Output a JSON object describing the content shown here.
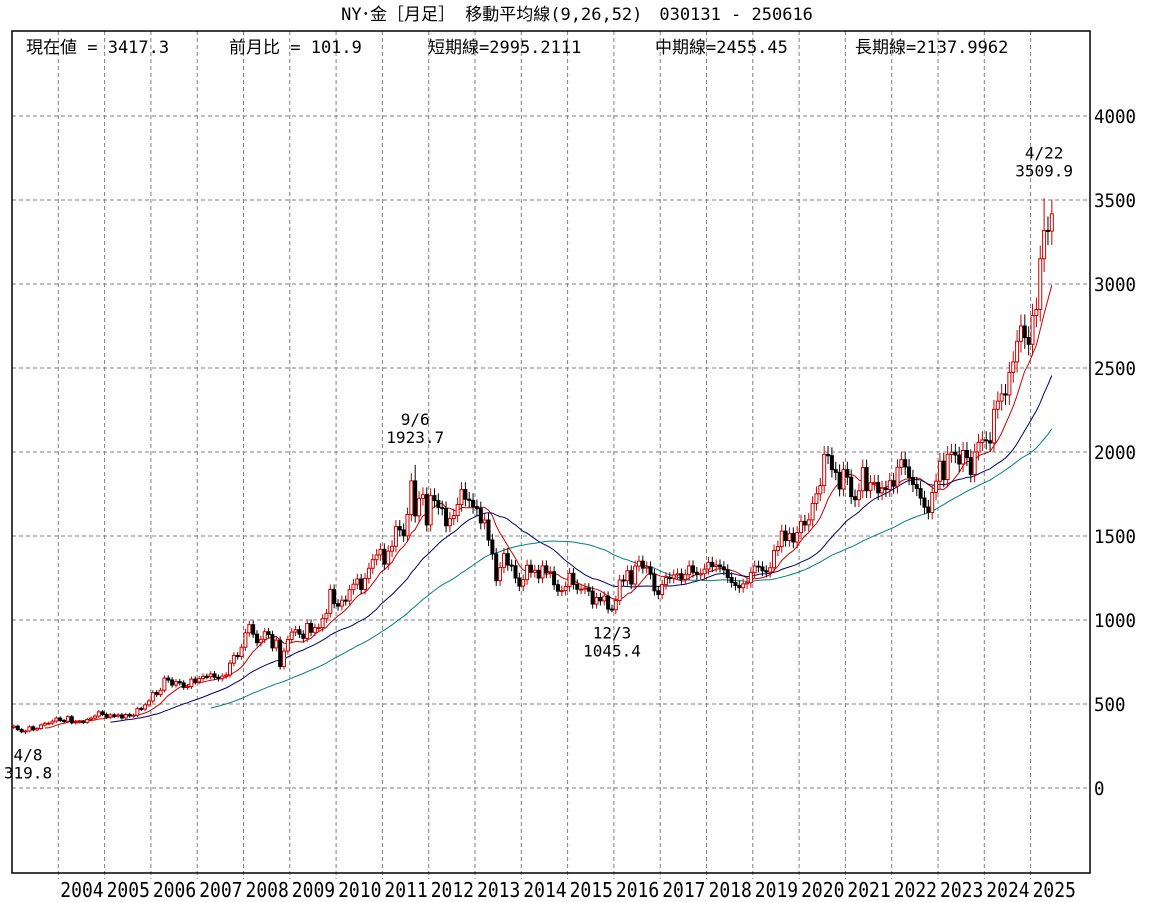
{
  "title": "NY･金［月足］ 移動平均線(9,26,52)　030131 - 250616",
  "header": {
    "current": "現在値 = 3417.3",
    "prev_ratio": "前月比 = 101.9",
    "short_ma": "短期線=2995.2111",
    "mid_ma": "中期線=2455.45",
    "long_ma": "長期線=2137.9962"
  },
  "colors": {
    "up": "#cc0000",
    "down": "#000000",
    "short_ma": "#cc0000",
    "mid_ma": "#000066",
    "long_ma": "#008080",
    "grid": "#808080"
  },
  "chart_data": {
    "type": "candlestick",
    "interval": "monthly",
    "start": "2003-01",
    "end": "2025-06",
    "ylim": [
      -500,
      4500
    ],
    "yticks": [
      0,
      500,
      1000,
      1500,
      2000,
      2500,
      3000,
      3500,
      4000
    ],
    "ytick_labels": [
      "0",
      "500",
      "1000",
      "1500",
      "2000",
      "2500",
      "3000",
      "3500",
      "4000"
    ],
    "xtick_labels": [
      "2004",
      "2005",
      "2006",
      "2007",
      "2008",
      "2009",
      "2010",
      "2011",
      "2012",
      "2013",
      "2014",
      "2015",
      "2016",
      "2017",
      "2018",
      "2019",
      "2020",
      "2021",
      "2022",
      "2023",
      "2024",
      "2025"
    ],
    "grid": true,
    "moving_averages": [
      9,
      26,
      52
    ],
    "closes": [
      368,
      348,
      335,
      339,
      364,
      346,
      354,
      375,
      385,
      386,
      398,
      416,
      402,
      397,
      424,
      388,
      394,
      395,
      391,
      408,
      416,
      428,
      453,
      438,
      422,
      435,
      428,
      435,
      417,
      437,
      429,
      433,
      473,
      470,
      495,
      518,
      568,
      556,
      582,
      654,
      643,
      613,
      633,
      626,
      599,
      604,
      648,
      632,
      651,
      665,
      663,
      679,
      659,
      650,
      666,
      673,
      743,
      789,
      783,
      838,
      924,
      972,
      916,
      865,
      885,
      930,
      913,
      834,
      880,
      723,
      815,
      884,
      928,
      942,
      916,
      891,
      979,
      927,
      955,
      955,
      1008,
      1040,
      1182,
      1097,
      1083,
      1118,
      1114,
      1180,
      1213,
      1244,
      1182,
      1248,
      1308,
      1359,
      1387,
      1421,
      1333,
      1410,
      1439,
      1556,
      1536,
      1501,
      1628,
      1828,
      1620,
      1724,
      1746,
      1566,
      1740,
      1711,
      1669,
      1664,
      1561,
      1604,
      1622,
      1687,
      1776,
      1719,
      1712,
      1675,
      1663,
      1578,
      1595,
      1476,
      1393,
      1234,
      1312,
      1395,
      1327,
      1323,
      1250,
      1202,
      1240,
      1326,
      1284,
      1296,
      1250,
      1322,
      1282,
      1287,
      1210,
      1172,
      1175,
      1199,
      1278,
      1212,
      1183,
      1184,
      1190,
      1172,
      1095,
      1134,
      1114,
      1142,
      1065,
      1061,
      1116,
      1238,
      1234,
      1293,
      1214,
      1321,
      1350,
      1309,
      1316,
      1273,
      1174,
      1152,
      1211,
      1253,
      1249,
      1268,
      1275,
      1242,
      1270,
      1322,
      1284,
      1271,
      1275,
      1303,
      1343,
      1318,
      1327,
      1316,
      1299,
      1253,
      1224,
      1206,
      1192,
      1215,
      1222,
      1282,
      1321,
      1316,
      1293,
      1285,
      1311,
      1414,
      1437,
      1529,
      1473,
      1514,
      1464,
      1520,
      1587,
      1566,
      1596,
      1694,
      1751,
      1800,
      1986,
      1978,
      1895,
      1879,
      1780,
      1895,
      1850,
      1734,
      1716,
      1769,
      1907,
      1770,
      1817,
      1818,
      1757,
      1784,
      1776,
      1829,
      1797,
      1909,
      1954,
      1911,
      1848,
      1807,
      1782,
      1726,
      1672,
      1640,
      1759,
      1826,
      1945,
      1836,
      1986,
      1999,
      1982,
      1929,
      2009,
      1966,
      1866,
      2000,
      2057,
      2072,
      2067,
      2054,
      2254,
      2303,
      2346,
      2339,
      2474,
      2536,
      2659,
      2750,
      2681,
      2641,
      2812,
      2848,
      3150,
      3319,
      3315,
      3417.3
    ],
    "annotations": [
      {
        "month": "2003-04",
        "date": "4/8",
        "value": "319.8",
        "price": 319.8,
        "type": "low"
      },
      {
        "month": "2011-09",
        "date": "9/6",
        "value": "1923.7",
        "price": 1923.7,
        "type": "high"
      },
      {
        "month": "2015-12",
        "date": "12/3",
        "value": "1045.4",
        "price": 1045.4,
        "type": "low"
      },
      {
        "month": "2025-04",
        "date": "4/22",
        "value": "3509.9",
        "price": 3509.9,
        "type": "high"
      }
    ]
  }
}
